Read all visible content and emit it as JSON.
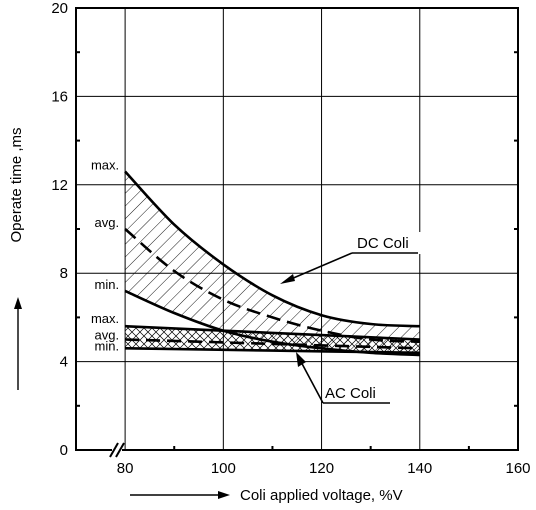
{
  "chart_data": {
    "type": "line",
    "xlabel": "Coli applied voltage, %V",
    "ylabel": "Operate time ,ms",
    "xlim": [
      70,
      160
    ],
    "ylim": [
      0,
      20
    ],
    "x_ticks": [
      {
        "value": 80,
        "label": "80"
      },
      {
        "value": 100,
        "label": "100"
      },
      {
        "value": 120,
        "label": "120"
      },
      {
        "value": 140,
        "label": "140"
      },
      {
        "value": 160,
        "label": "160"
      }
    ],
    "y_ticks": [
      {
        "value": 0,
        "label": "0"
      },
      {
        "value": 4,
        "label": "4"
      },
      {
        "value": 8,
        "label": "8"
      },
      {
        "value": 12,
        "label": "12"
      },
      {
        "value": 16,
        "label": "16"
      },
      {
        "value": 20,
        "label": "20"
      }
    ],
    "grid": true,
    "axis_break_on_x": true,
    "groups": [
      {
        "name": "DC Coli",
        "hatched_band": true,
        "series": [
          {
            "name": "max.",
            "style": "solid",
            "x": [
              80,
              90,
              100,
              110,
              120,
              130,
              140
            ],
            "y": [
              12.6,
              10.2,
              8.4,
              7.0,
              6.1,
              5.7,
              5.6
            ]
          },
          {
            "name": "avg.",
            "style": "dashed",
            "x": [
              80,
              90,
              100,
              110,
              120,
              130,
              140
            ],
            "y": [
              10.0,
              8.1,
              6.8,
              6.0,
              5.4,
              5.0,
              4.9
            ]
          },
          {
            "name": "min.",
            "style": "solid",
            "x": [
              80,
              90,
              100,
              110,
              120,
              130,
              140
            ],
            "y": [
              7.2,
              6.2,
              5.4,
              4.9,
              4.6,
              4.4,
              4.3
            ]
          }
        ]
      },
      {
        "name": "AC Coli",
        "hatched_band": true,
        "series": [
          {
            "name": "max.",
            "style": "solid",
            "x": [
              80,
              110,
              140
            ],
            "y": [
              5.6,
              5.3,
              5.0
            ]
          },
          {
            "name": "avg.",
            "style": "dashed",
            "x": [
              80,
              110,
              140
            ],
            "y": [
              5.0,
              4.8,
              4.6
            ]
          },
          {
            "name": "min.",
            "style": "solid",
            "x": [
              80,
              110,
              140
            ],
            "y": [
              4.6,
              4.5,
              4.4
            ]
          }
        ]
      }
    ]
  }
}
